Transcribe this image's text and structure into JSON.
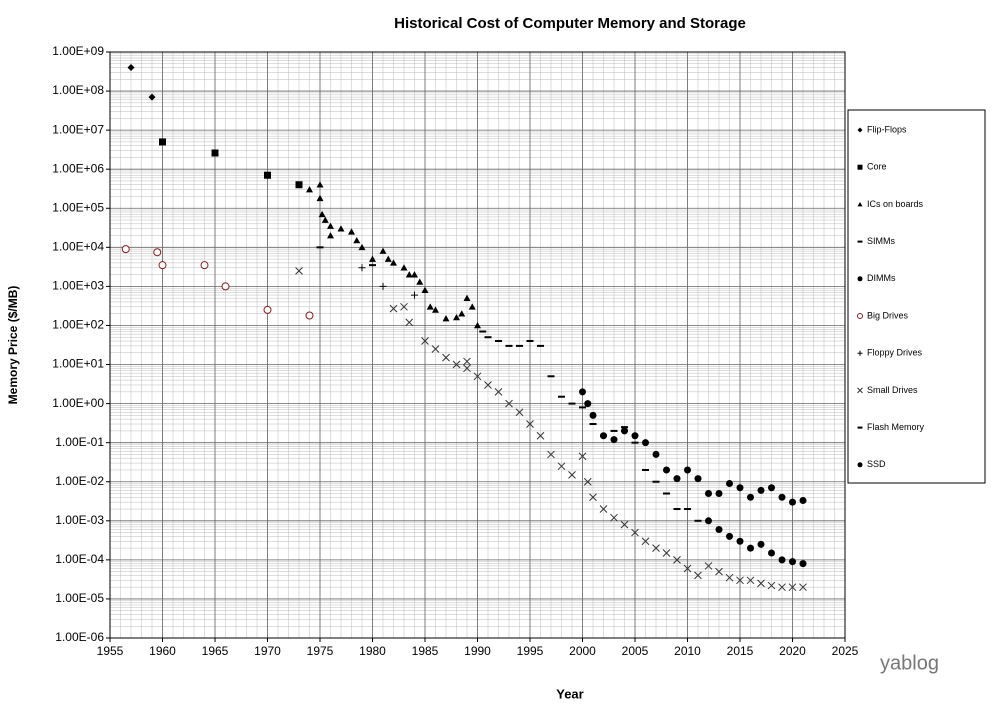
{
  "chart_data": {
    "type": "scatter",
    "title": "Historical Cost of Computer Memory and Storage",
    "xlabel": "Year",
    "ylabel": "Memory Price ($/MB)",
    "watermark": "yablog",
    "log_y": true,
    "grid": true,
    "legend": "right",
    "xlim": [
      1955,
      2025
    ],
    "xticks": [
      1955,
      1960,
      1965,
      1970,
      1975,
      1980,
      1985,
      1990,
      1995,
      2000,
      2005,
      2010,
      2015,
      2020,
      2025
    ],
    "ylim": [
      1e-06,
      1000000000
    ],
    "yticks": [
      {
        "value": 1e-06,
        "label": "1.00E-06"
      },
      {
        "value": 1e-05,
        "label": "1.00E-05"
      },
      {
        "value": 0.0001,
        "label": "1.00E-04"
      },
      {
        "value": 0.001,
        "label": "1.00E-03"
      },
      {
        "value": 0.01,
        "label": "1.00E-02"
      },
      {
        "value": 0.1,
        "label": "1.00E-01"
      },
      {
        "value": 1,
        "label": "1.00E+00"
      },
      {
        "value": 10,
        "label": "1.00E+01"
      },
      {
        "value": 100,
        "label": "1.00E+02"
      },
      {
        "value": 1000,
        "label": "1.00E+03"
      },
      {
        "value": 10000,
        "label": "1.00E+04"
      },
      {
        "value": 100000,
        "label": "1.00E+05"
      },
      {
        "value": 1000000,
        "label": "1.00E+06"
      },
      {
        "value": 10000000,
        "label": "1.00E+07"
      },
      {
        "value": 100000000,
        "label": "1.00E+08"
      },
      {
        "value": 1000000000,
        "label": "1.00E+09"
      }
    ],
    "series": [
      {
        "name": "Flip-Flops",
        "marker": "diamond",
        "color": "#000000",
        "x": [
          1957,
          1959
        ],
        "values": [
          400000000,
          70000000
        ]
      },
      {
        "name": "Core",
        "marker": "square",
        "color": "#000000",
        "x": [
          1960,
          1965,
          1970,
          1973
        ],
        "values": [
          5000000,
          2600000,
          700000,
          400000
        ]
      },
      {
        "name": "ICs on boards",
        "marker": "triangle",
        "color": "#000000",
        "x": [
          1974,
          1975,
          1975,
          1975.2,
          1975.5,
          1976,
          1976,
          1977,
          1978,
          1978.5,
          1979,
          1980,
          1981,
          1981.5,
          1982,
          1983,
          1983.5,
          1984,
          1984.5,
          1985,
          1985.5,
          1986,
          1987,
          1988,
          1988.5,
          1989,
          1989.5,
          1990
        ],
        "values": [
          300000,
          400000,
          180000,
          70000,
          50000,
          35000,
          20000,
          30000,
          25000,
          15000,
          10000,
          5000,
          8000,
          5000,
          4000,
          3000,
          2000,
          2000,
          1300,
          800,
          300,
          250,
          150,
          160,
          200,
          500,
          300,
          100
        ]
      },
      {
        "name": "SIMMs",
        "marker": "dash",
        "color": "#000000",
        "x": [
          1975,
          1980,
          1990.5,
          1991,
          1992,
          1993,
          1994,
          1995,
          1996,
          1997,
          1998,
          1999,
          2000,
          2001,
          2002,
          2003,
          2004
        ],
        "values": [
          10000,
          3500,
          70,
          50,
          40,
          30,
          30,
          40,
          30,
          5,
          1.5,
          1,
          0.8,
          0.3,
          0.15,
          0.2,
          0.25
        ]
      },
      {
        "name": "DIMMs",
        "marker": "circle",
        "color": "#000000",
        "x": [
          2000,
          2000.5,
          2001,
          2002,
          2003,
          2004,
          2005,
          2006,
          2007,
          2008,
          2009,
          2010,
          2011,
          2012,
          2013,
          2014,
          2015,
          2016,
          2017,
          2018,
          2019,
          2020,
          2021
        ],
        "values": [
          2,
          1,
          0.5,
          0.15,
          0.12,
          0.2,
          0.15,
          0.1,
          0.05,
          0.02,
          0.012,
          0.02,
          0.012,
          0.005,
          0.005,
          0.009,
          0.007,
          0.004,
          0.006,
          0.007,
          0.004,
          0.003,
          0.0033
        ]
      },
      {
        "name": "Big Drives",
        "marker": "open-circle",
        "color": "#8b1a1a",
        "x": [
          1956.5,
          1959.5,
          1960,
          1964,
          1966,
          1970,
          1974
        ],
        "values": [
          9000,
          7500,
          3500,
          3500,
          1000,
          250,
          180
        ]
      },
      {
        "name": "Floppy Drives",
        "marker": "plus",
        "color": "#000000",
        "x": [
          1979,
          1981,
          1984
        ],
        "values": [
          3000,
          1000,
          600
        ]
      },
      {
        "name": "Small Drives",
        "marker": "cross",
        "color": "#333333",
        "x": [
          1973,
          1982,
          1983,
          1983.5,
          1985,
          1986,
          1987,
          1988,
          1989,
          1989,
          1990,
          1991,
          1992,
          1993,
          1994,
          1995,
          1996,
          1997,
          1998,
          1999,
          2000,
          2000.5,
          2001,
          2002,
          2003,
          2004,
          2005,
          2006,
          2007,
          2008,
          2009,
          2010,
          2011,
          2012,
          2013,
          2014,
          2015,
          2016,
          2017,
          2018,
          2019,
          2020,
          2021
        ],
        "values": [
          2500,
          270,
          300,
          120,
          40,
          25,
          15,
          10,
          12,
          8,
          5,
          3,
          2,
          1,
          0.6,
          0.3,
          0.15,
          0.05,
          0.025,
          0.015,
          0.045,
          0.01,
          0.004,
          0.002,
          0.0012,
          0.0008,
          0.0005,
          0.0003,
          0.0002,
          0.00015,
          0.0001,
          6e-05,
          4e-05,
          7e-05,
          5e-05,
          3.5e-05,
          3e-05,
          3e-05,
          2.5e-05,
          2.2e-05,
          2e-05,
          2e-05,
          2e-05
        ]
      },
      {
        "name": "Flash Memory",
        "marker": "dash",
        "color": "#000000",
        "x": [
          2004,
          2005,
          2006,
          2007,
          2008,
          2009,
          2010,
          2011
        ],
        "values": [
          0.2,
          0.1,
          0.02,
          0.01,
          0.005,
          0.002,
          0.002,
          0.001
        ]
      },
      {
        "name": "SSD",
        "marker": "circle",
        "color": "#000000",
        "x": [
          2012,
          2013,
          2014,
          2015,
          2016,
          2017,
          2018,
          2019,
          2020,
          2021
        ],
        "values": [
          0.001,
          0.0006,
          0.0004,
          0.0003,
          0.0002,
          0.00025,
          0.00015,
          0.0001,
          9e-05,
          8e-05
        ]
      }
    ]
  }
}
